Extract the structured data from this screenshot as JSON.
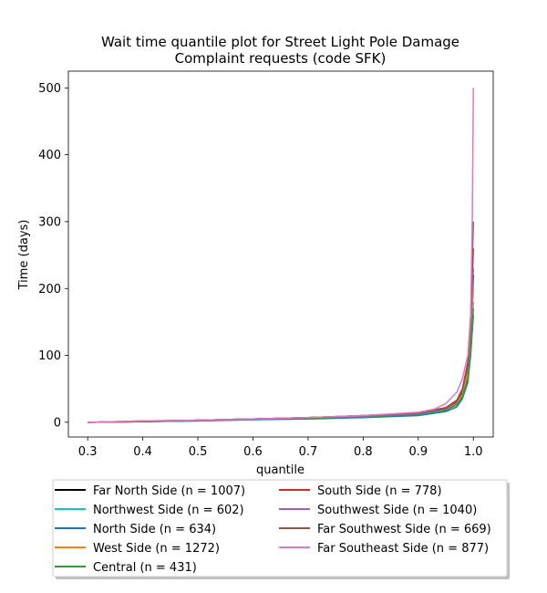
{
  "chart_data": {
    "type": "line",
    "title": [
      "Wait time quantile plot for Street Light Pole Damage",
      "Complaint  requests (code SFK)"
    ],
    "xlabel": "quantile",
    "ylabel": "Time (days)",
    "xlim": [
      0.265,
      1.036
    ],
    "ylim": [
      -22,
      525
    ],
    "xticks": [
      0.3,
      0.4,
      0.5,
      0.6,
      0.7,
      0.8,
      0.9,
      1.0
    ],
    "xtick_labels": [
      "0.3",
      "0.4",
      "0.5",
      "0.6",
      "0.7",
      "0.8",
      "0.9",
      "1.0"
    ],
    "yticks": [
      0,
      100,
      200,
      300,
      400,
      500
    ],
    "ytick_labels": [
      "0",
      "100",
      "200",
      "300",
      "400",
      "500"
    ],
    "grid": false,
    "legend_placement": "below-plot, two columns, with shadow",
    "series": [
      {
        "name": "Far North Side (n = 1007)",
        "color": "#000000",
        "x": [
          0.3,
          0.4,
          0.5,
          0.6,
          0.7,
          0.8,
          0.9,
          0.95,
          0.97,
          0.98,
          0.99,
          0.995,
          1.0
        ],
        "y": [
          0,
          1,
          3,
          5,
          7,
          9,
          13,
          20,
          30,
          45,
          80,
          130,
          220
        ]
      },
      {
        "name": "Northwest Side (n = 602)",
        "color": "#17becf",
        "x": [
          0.3,
          0.4,
          0.5,
          0.6,
          0.7,
          0.8,
          0.9,
          0.95,
          0.97,
          0.98,
          0.99,
          0.995,
          1.0
        ],
        "y": [
          0,
          1,
          2,
          4,
          6,
          8,
          12,
          18,
          27,
          40,
          70,
          110,
          180
        ]
      },
      {
        "name": "North Side (n = 634)",
        "color": "#1f77b4",
        "x": [
          0.3,
          0.4,
          0.5,
          0.6,
          0.7,
          0.8,
          0.9,
          0.95,
          0.97,
          0.98,
          0.99,
          0.995,
          1.0
        ],
        "y": [
          0,
          1,
          2,
          4,
          5,
          7,
          10,
          16,
          23,
          35,
          60,
          100,
          160
        ]
      },
      {
        "name": "West Side (n = 1272)",
        "color": "#ff7f0e",
        "x": [
          0.3,
          0.4,
          0.5,
          0.6,
          0.7,
          0.8,
          0.9,
          0.95,
          0.97,
          0.98,
          0.99,
          0.995,
          1.0
        ],
        "y": [
          0,
          1,
          3,
          5,
          7,
          9,
          13,
          19,
          28,
          42,
          75,
          120,
          200
        ]
      },
      {
        "name": "Central (n = 431)",
        "color": "#2ca02c",
        "x": [
          0.3,
          0.4,
          0.5,
          0.6,
          0.7,
          0.8,
          0.9,
          0.95,
          0.97,
          0.98,
          0.99,
          0.995,
          1.0
        ],
        "y": [
          0,
          1,
          3,
          5,
          6,
          8,
          12,
          18,
          26,
          38,
          65,
          105,
          170
        ]
      },
      {
        "name": "South Side (n = 778)",
        "color": "#d62728",
        "x": [
          0.3,
          0.4,
          0.5,
          0.6,
          0.7,
          0.8,
          0.9,
          0.95,
          0.97,
          0.98,
          0.99,
          0.995,
          1.0
        ],
        "y": [
          0,
          2,
          3,
          5,
          7,
          10,
          14,
          22,
          33,
          50,
          90,
          150,
          260
        ]
      },
      {
        "name": "Southwest Side (n = 1040)",
        "color": "#9467bd",
        "x": [
          0.3,
          0.4,
          0.5,
          0.6,
          0.7,
          0.8,
          0.9,
          0.95,
          0.97,
          0.98,
          0.99,
          0.995,
          1.0
        ],
        "y": [
          0,
          1,
          3,
          5,
          7,
          9,
          13,
          20,
          31,
          48,
          85,
          140,
          230
        ]
      },
      {
        "name": "Far Southwest Side (n = 669)",
        "color": "#8c564b",
        "x": [
          0.3,
          0.4,
          0.5,
          0.6,
          0.7,
          0.8,
          0.9,
          0.95,
          0.97,
          0.98,
          0.99,
          0.995,
          1.0
        ],
        "y": [
          0,
          1,
          3,
          5,
          7,
          10,
          14,
          21,
          32,
          48,
          85,
          150,
          300
        ]
      },
      {
        "name": "Far Southeast Side (n = 877)",
        "color": "#e377c2",
        "x": [
          0.3,
          0.4,
          0.5,
          0.6,
          0.7,
          0.8,
          0.9,
          0.93,
          0.95,
          0.97,
          0.98,
          0.99,
          0.995,
          0.998,
          1.0
        ],
        "y": [
          0,
          2,
          3,
          5,
          7,
          10,
          15,
          20,
          28,
          45,
          65,
          100,
          160,
          300,
          500
        ]
      }
    ]
  }
}
